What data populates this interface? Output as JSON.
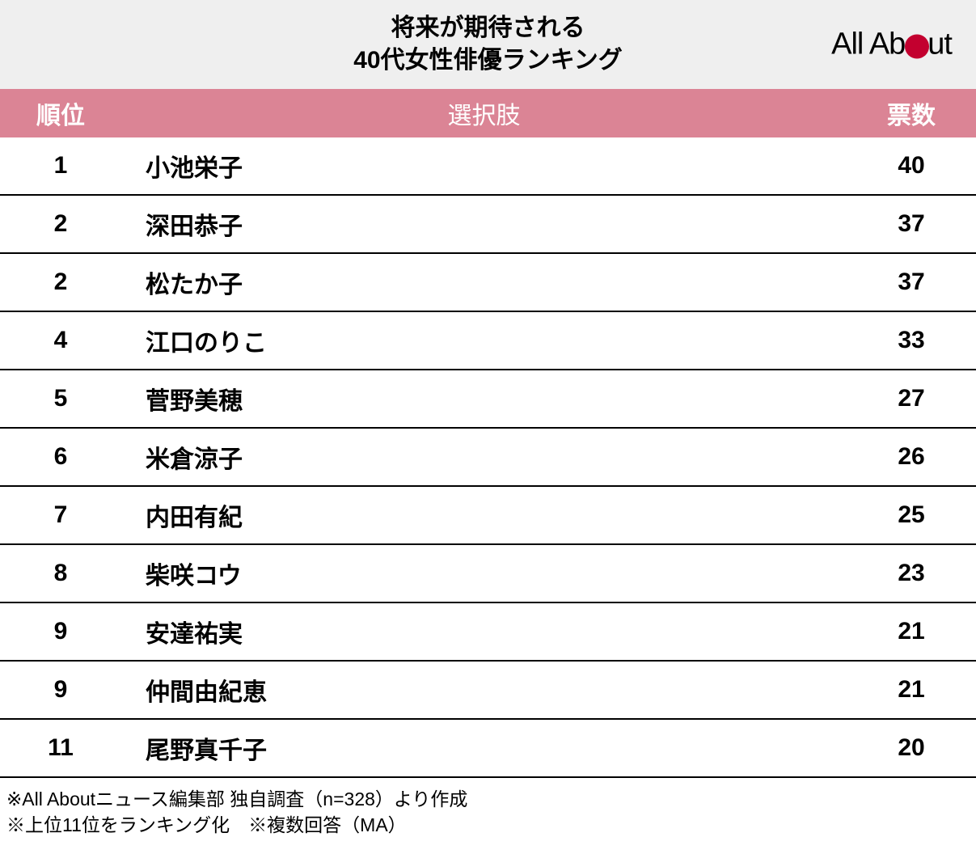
{
  "title_line1": "将来が期待される",
  "title_line2": "40代女性俳優ランキング",
  "logo_prefix": "All Ab",
  "logo_suffix": "ut",
  "logo_dot_color": "#c3002f",
  "header_bg": "#efefef",
  "thead_bg": "#db8495",
  "thead_text_color": "#ffffff",
  "columns": {
    "rank": "順位",
    "name": "選択肢",
    "votes": "票数"
  },
  "rows": [
    {
      "rank": "1",
      "name": "小池栄子",
      "votes": "40"
    },
    {
      "rank": "2",
      "name": "深田恭子",
      "votes": "37"
    },
    {
      "rank": "2",
      "name": "松たか子",
      "votes": "37"
    },
    {
      "rank": "4",
      "name": "江口のりこ",
      "votes": "33"
    },
    {
      "rank": "5",
      "name": "菅野美穂",
      "votes": "27"
    },
    {
      "rank": "6",
      "name": "米倉涼子",
      "votes": "26"
    },
    {
      "rank": "7",
      "name": "内田有紀",
      "votes": "25"
    },
    {
      "rank": "8",
      "name": "柴咲コウ",
      "votes": "23"
    },
    {
      "rank": "9",
      "name": "安達祐実",
      "votes": "21"
    },
    {
      "rank": "9",
      "name": "仲間由紀恵",
      "votes": "21"
    },
    {
      "rank": "11",
      "name": "尾野真千子",
      "votes": "20"
    }
  ],
  "footer_line1": "※All Aboutニュース編集部 独自調査（n=328）より作成",
  "footer_line2": "※上位11位をランキング化　※複数回答（MA）"
}
